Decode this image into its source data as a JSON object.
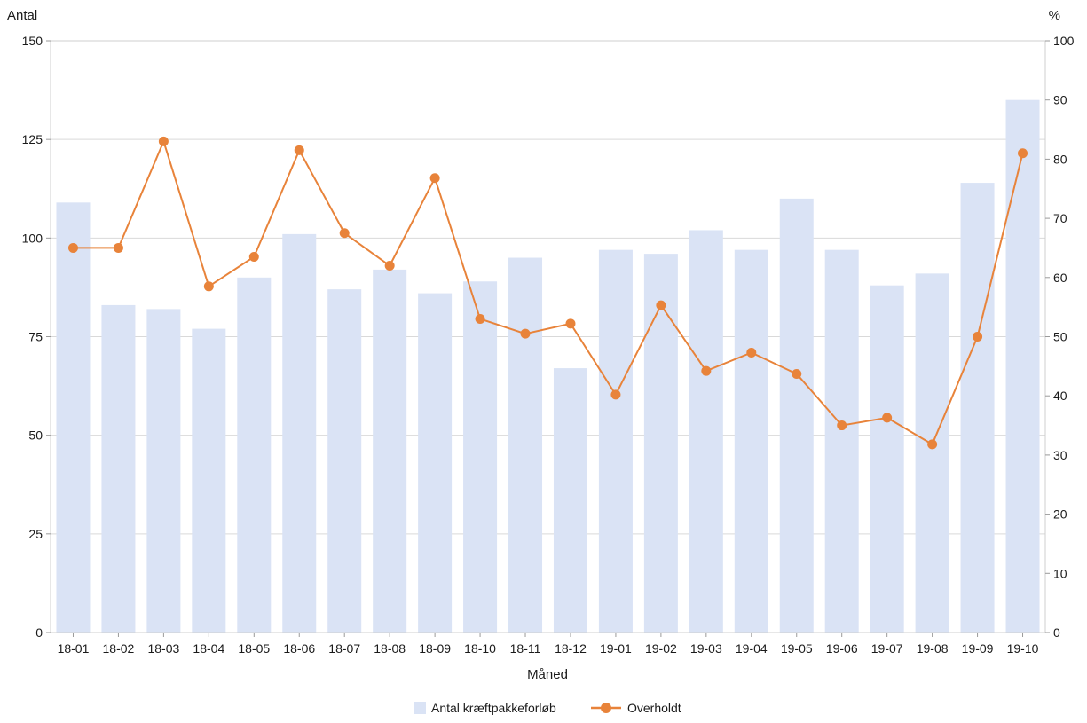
{
  "chart_data": {
    "type": "bar+line",
    "title": "",
    "xlabel": "Måned",
    "ylabel_left": "Antal",
    "ylabel_right": "%",
    "categories": [
      "18-01",
      "18-02",
      "18-03",
      "18-04",
      "18-05",
      "18-06",
      "18-07",
      "18-08",
      "18-09",
      "18-10",
      "18-11",
      "18-12",
      "19-01",
      "19-02",
      "19-03",
      "19-04",
      "19-05",
      "19-06",
      "19-07",
      "19-08",
      "19-09",
      "19-10"
    ],
    "y_left": {
      "min": 0,
      "max": 150,
      "ticks": [
        "0",
        "25",
        "50",
        "75",
        "100",
        "125",
        "150"
      ]
    },
    "y_right": {
      "min": 0,
      "max": 100,
      "ticks": [
        "0",
        "10",
        "20",
        "30",
        "40",
        "50",
        "60",
        "70",
        "80",
        "90",
        "100"
      ]
    },
    "grid": true,
    "legend_position": "bottom-center",
    "series": [
      {
        "name": "Antal kræftpakkeforløb",
        "type": "bar",
        "axis": "left",
        "color": "#dae3f5",
        "values": [
          109,
          83,
          82,
          77,
          90,
          101,
          87,
          92,
          86,
          89,
          95,
          67,
          97,
          96,
          102,
          97,
          110,
          97,
          88,
          91,
          114,
          135
        ]
      },
      {
        "name": "Overholdt",
        "type": "line",
        "axis": "right",
        "color": "#e8833a",
        "values": [
          65,
          65,
          83,
          58.5,
          63.5,
          81.5,
          67.5,
          62,
          76.8,
          53,
          50.5,
          52.2,
          40.2,
          55.3,
          44.2,
          47.3,
          43.7,
          35,
          36.3,
          31.8,
          50,
          81
        ]
      }
    ]
  }
}
